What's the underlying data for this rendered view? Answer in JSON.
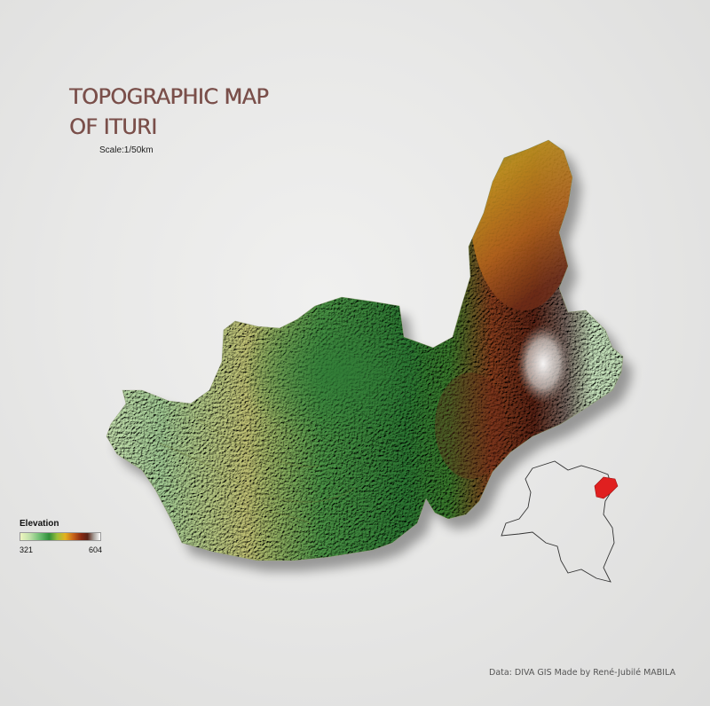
{
  "title": {
    "line1": "TOPOGRAPHIC MAP",
    "line2": "OF ITURI"
  },
  "scale": "Scale:1/50km",
  "legend": {
    "title": "Elevation",
    "min": "321",
    "max": "604",
    "ramp_colors": [
      "#eef6c0",
      "#6fbf73",
      "#2f8f3a",
      "#e3b21f",
      "#c9651a",
      "#8a2a12",
      "#5a2316",
      "#ffffff"
    ]
  },
  "credit": "Data: DIVA GIS Made by René-Jubilé MABILA",
  "locator": {
    "highlight_color": "#e02020",
    "outline_color": "#333333"
  }
}
